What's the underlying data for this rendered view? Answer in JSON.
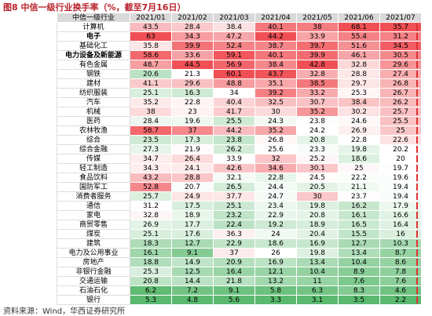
{
  "title": "图8 中信一级行业换手率（%，截至7月16日）",
  "table": {
    "headers": [
      "中信一级行业",
      "2021/01",
      "2021/02",
      "2021/03",
      "2021/04",
      "2021/05",
      "2021/06",
      "2021/07"
    ],
    "rows": [
      [
        "计算机",
        43.5,
        28.4,
        38.4,
        40.1,
        38.0,
        68.1,
        35.7
      ],
      [
        "电子",
        63.0,
        34.3,
        47.2,
        44.2,
        33.9,
        55.4,
        31.2
      ],
      [
        "基础化工",
        35.8,
        39.9,
        52.4,
        38.7,
        39.7,
        51.6,
        34.5
      ],
      [
        "电力设备及新能源",
        58.6,
        33.6,
        59.1,
        40.1,
        39.9,
        46.1,
        30.5
      ],
      [
        "有色金属",
        48.7,
        44.5,
        56.9,
        38.4,
        42.8,
        32.8,
        29.6
      ],
      [
        "钢铁",
        20.6,
        21.3,
        60.1,
        43.7,
        32.8,
        28.8,
        27.4
      ],
      [
        "建材",
        41.1,
        29.6,
        48.8,
        35.1,
        38.5,
        29.7,
        26.8
      ],
      [
        "纺织服装",
        25.1,
        16.3,
        34.0,
        39.2,
        33.2,
        25.3,
        26.7
      ],
      [
        "汽车",
        35.2,
        22.8,
        40.4,
        32.5,
        30.7,
        38.4,
        26.2
      ],
      [
        "机械",
        38.0,
        23.0,
        41.7,
        30.0,
        35.2,
        30.2,
        25.7
      ],
      [
        "医药",
        28.4,
        19.6,
        25.5,
        24.3,
        23.8,
        24.6,
        25.5
      ],
      [
        "农林牧渔",
        58.7,
        37.0,
        44.2,
        35.2,
        24.2,
        26.9,
        25.0
      ],
      [
        "综合",
        23.5,
        17.3,
        23.8,
        26.8,
        20.8,
        22.8,
        22.6
      ],
      [
        "综合金融",
        27.3,
        21.9,
        26.2,
        25.6,
        23.3,
        19.8,
        20.2
      ],
      [
        "传媒",
        34.7,
        26.4,
        33.9,
        32.0,
        25.2,
        18.6,
        20.0
      ],
      [
        "轻工制造",
        34.3,
        24.1,
        42.6,
        34.6,
        30.1,
        25.0,
        19.7
      ],
      [
        "食品饮料",
        43.2,
        28.8,
        32.1,
        22.8,
        24.5,
        22.2,
        19.6
      ],
      [
        "国防军工",
        52.8,
        20.7,
        26.5,
        24.4,
        20.5,
        21.1,
        19.4
      ],
      [
        "消费者服务",
        25.7,
        24.9,
        37.7,
        24.7,
        30.0,
        23.7,
        19.4
      ],
      [
        "通信",
        31.2,
        17.5,
        25.1,
        23.4,
        19.8,
        16.2,
        17.9
      ],
      [
        "家电",
        32.8,
        18.9,
        23.2,
        22.9,
        20.8,
        16.1,
        16.6
      ],
      [
        "商贸零售",
        26.9,
        17.7,
        22.4,
        19.2,
        18.9,
        16.5,
        16.4
      ],
      [
        "煤炭",
        25.1,
        17.6,
        36.3,
        24.0,
        20.4,
        15.5,
        16.0
      ],
      [
        "建筑",
        18.3,
        12.7,
        22.9,
        18.6,
        16.9,
        12.7,
        10.3
      ],
      [
        "电力及公用事业",
        16.1,
        9.1,
        37.0,
        26.0,
        19.8,
        13.4,
        8.7
      ],
      [
        "房地产",
        18.8,
        14.9,
        20.9,
        16.9,
        13.4,
        10.4,
        8.6
      ],
      [
        "非银行金融",
        25.3,
        12.5,
        16.4,
        12.1,
        10.4,
        8.9,
        7.8
      ],
      [
        "交通运输",
        20.8,
        14.4,
        21.8,
        13.2,
        11.0,
        7.6,
        7.6
      ],
      [
        "石油石化",
        6.2,
        7.2,
        9.1,
        5.8,
        6.3,
        8.3,
        4.6
      ],
      [
        "银行",
        5.3,
        4.8,
        5.6,
        3.3,
        3.1,
        3.5,
        2.2
      ]
    ],
    "bold_rows": [
      "电子",
      "电力设备及新能源"
    ]
  },
  "source": "资料来源：Wind，华西证券研究所"
}
